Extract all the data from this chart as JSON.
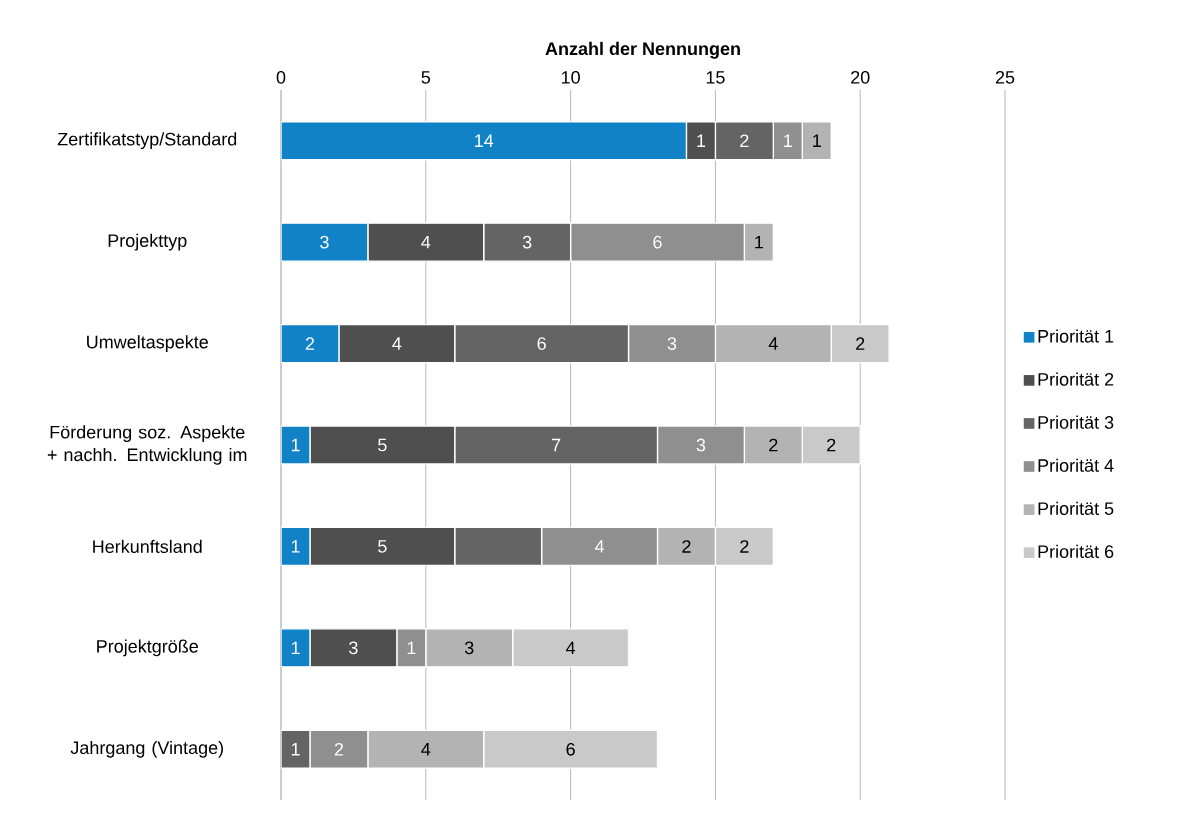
{
  "chart_data": {
    "type": "bar",
    "orientation": "horizontal",
    "stacked": true,
    "xlabel": "Anzahl der Nennungen",
    "categories": [
      "Zertifikatstyp/Standard",
      "Projekttyp",
      "Umweltaspekte",
      "Förderung soz. Aspekte + nachh. Entwicklung im",
      "Herkunftsland",
      "Projektgröße",
      "Jahrgang (Vintage)"
    ],
    "series": [
      {
        "name": "Priorität 1",
        "color": "#1282c6",
        "values": [
          14,
          3,
          2,
          1,
          1,
          1,
          0
        ],
        "value_labels": [
          "14",
          "3",
          "2",
          "1",
          "1",
          "1",
          null
        ]
      },
      {
        "name": "Priorität 2",
        "color": "#4f4f4f",
        "values": [
          1,
          4,
          4,
          5,
          5,
          3,
          0
        ],
        "value_labels": [
          "1",
          "4",
          "4",
          "5",
          "5",
          "3",
          null
        ]
      },
      {
        "name": "Priorität 3",
        "color": "#646464",
        "values": [
          2,
          3,
          6,
          7,
          3,
          0,
          1
        ],
        "value_labels": [
          "2",
          "3",
          "6",
          "7",
          null,
          null,
          "1"
        ]
      },
      {
        "name": "Priorität 4",
        "color": "#8f8f8f",
        "values": [
          1,
          6,
          3,
          3,
          4,
          1,
          2
        ],
        "value_labels": [
          "1",
          "6",
          "3",
          "3",
          "4",
          "1",
          "2"
        ]
      },
      {
        "name": "Priorität 5",
        "color": "#b3b3b3",
        "values": [
          1,
          1,
          4,
          2,
          2,
          3,
          4
        ],
        "value_labels": [
          "1",
          "1",
          "4",
          "2",
          "2",
          "3",
          "4"
        ]
      },
      {
        "name": "Priorität 6",
        "color": "#c9c9c9",
        "values": [
          0,
          0,
          2,
          2,
          2,
          4,
          6
        ],
        "value_labels": [
          null,
          null,
          "2",
          "2",
          "2",
          "4",
          "6"
        ]
      }
    ],
    "xlim": [
      0,
      25
    ],
    "xticks": [
      0,
      5,
      10,
      15,
      20,
      25
    ],
    "grid": "x",
    "legend": "right"
  }
}
